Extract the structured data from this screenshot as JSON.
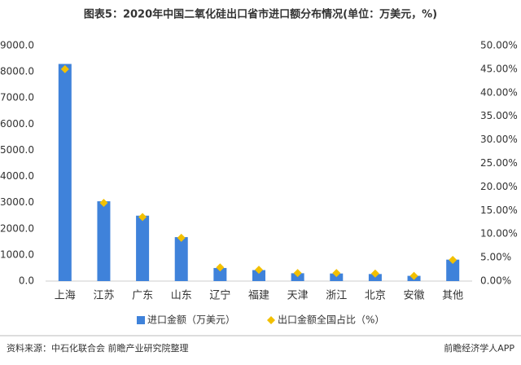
{
  "chart_data": {
    "type": "bar",
    "title": "图表5：2020年中国二氧化硅出口省市进口额分布情况(单位：万美元，%)",
    "categories": [
      "上海",
      "江苏",
      "广东",
      "山东",
      "辽宁",
      "福建",
      "天津",
      "浙江",
      "北京",
      "安徽",
      "其他"
    ],
    "series": [
      {
        "name": "进口金额（万美元）",
        "type": "bar",
        "color": "#3f82da",
        "axis": "y",
        "values": [
          8300,
          3050,
          2500,
          1680,
          500,
          420,
          300,
          290,
          270,
          200,
          820
        ]
      },
      {
        "name": "出口金额全国占比（%）",
        "type": "scatter",
        "color": "#f2c000",
        "axis": "y2",
        "values": [
          45.0,
          16.6,
          13.6,
          9.2,
          2.9,
          2.4,
          1.7,
          1.7,
          1.6,
          1.1,
          4.5
        ]
      }
    ],
    "ylim": [
      0,
      9000
    ],
    "yticks": [
      {
        "value": 0,
        "label": "0.0"
      },
      {
        "value": 1000,
        "label": "1000.0"
      },
      {
        "value": 2000,
        "label": "2000.0"
      },
      {
        "value": 3000,
        "label": "3000.0"
      },
      {
        "value": 4000,
        "label": "4000.0"
      },
      {
        "value": 5000,
        "label": "5000.0"
      },
      {
        "value": 6000,
        "label": "6000.0"
      },
      {
        "value": 7000,
        "label": "7000.0"
      },
      {
        "value": 8000,
        "label": "8000.0"
      },
      {
        "value": 9000,
        "label": "9000.0"
      }
    ],
    "y2lim": [
      0,
      50
    ],
    "y2ticks": [
      {
        "value": 0,
        "label": "0.00%"
      },
      {
        "value": 5,
        "label": "5.00%"
      },
      {
        "value": 10,
        "label": "10.00%"
      },
      {
        "value": 15,
        "label": "15.00%"
      },
      {
        "value": 20,
        "label": "20.00%"
      },
      {
        "value": 25,
        "label": "25.00%"
      },
      {
        "value": 30,
        "label": "30.00%"
      },
      {
        "value": 35,
        "label": "35.00%"
      },
      {
        "value": 40,
        "label": "40.00%"
      },
      {
        "value": 45,
        "label": "45.00%"
      },
      {
        "value": 50,
        "label": "50.00%"
      }
    ],
    "legend": "bottom",
    "source": "资料来源：中石化联合会 前瞻产业研究院整理",
    "brand": "前瞻经济学人APP"
  }
}
